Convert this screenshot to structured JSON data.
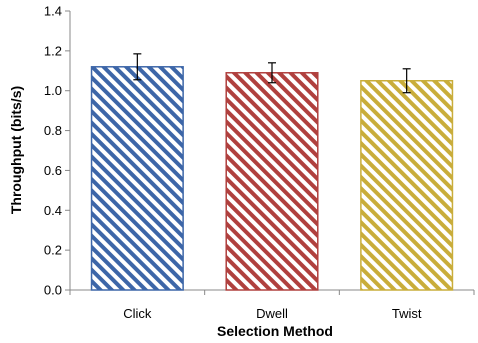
{
  "chart_data": {
    "type": "bar",
    "title": "",
    "xlabel": "Selection Method",
    "ylabel": "Throughput (bits/s)",
    "ylim": [
      0,
      1.4
    ],
    "yticks": [
      0.0,
      0.2,
      0.4,
      0.6,
      0.8,
      1.0,
      1.2,
      1.4
    ],
    "ytick_labels": [
      "0.0",
      "0.2",
      "0.4",
      "0.6",
      "0.8",
      "1.0",
      "1.2",
      "1.4"
    ],
    "categories": [
      "Click",
      "Dwell",
      "Twist"
    ],
    "values": [
      1.12,
      1.09,
      1.05
    ],
    "error": [
      0.065,
      0.05,
      0.06
    ],
    "colors": [
      "#3d66a8",
      "#b0403e",
      "#c9ad3a"
    ],
    "fill_pattern": "diagonal-hatch",
    "grid": false,
    "legend": "none"
  }
}
